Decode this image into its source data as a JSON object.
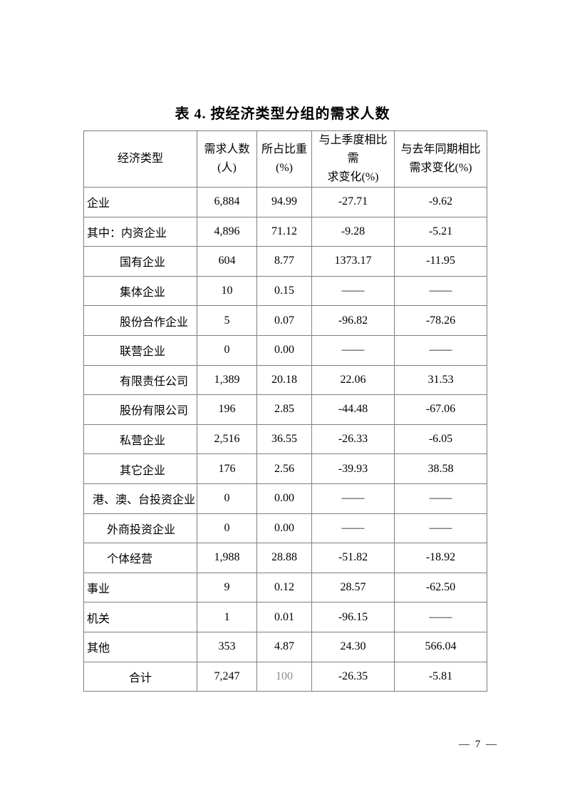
{
  "page": {
    "title": "表 4. 按经济类型分组的需求人数",
    "page_number": "— 7 —"
  },
  "colors": {
    "border": "#7f7f7f",
    "text": "#000000",
    "muted_value": "#8a8a8a"
  },
  "table": {
    "columns": [
      {
        "lines": [
          "经济类型"
        ],
        "width": 159
      },
      {
        "lines": [
          "需求人数",
          "(人)"
        ],
        "width": 84
      },
      {
        "lines": [
          "所占比重",
          "(%)"
        ],
        "width": 77
      },
      {
        "lines": [
          "与上季度相比需",
          "求变化(%)"
        ],
        "width": 116
      },
      {
        "lines": [
          "与去年同期相比",
          "需求变化(%)"
        ],
        "width": 130
      }
    ],
    "rows": [
      {
        "label": "企业",
        "indent": "none",
        "values": [
          "6,884",
          "94.99",
          "-27.71",
          "-9.62"
        ]
      },
      {
        "label": "其中：内资企业",
        "indent": "none",
        "values": [
          "4,896",
          "71.12",
          "-9.28",
          "-5.21"
        ]
      },
      {
        "label": "国有企业",
        "indent": "lg",
        "values": [
          "604",
          "8.77",
          "1373.17",
          "-11.95"
        ]
      },
      {
        "label": "集体企业",
        "indent": "lg",
        "values": [
          "10",
          "0.15",
          "——",
          "——"
        ]
      },
      {
        "label": "股份合作企业",
        "indent": "lg",
        "values": [
          "5",
          "0.07",
          "-96.82",
          "-78.26"
        ]
      },
      {
        "label": "联营企业",
        "indent": "lg",
        "values": [
          "0",
          "0.00",
          "——",
          "——"
        ]
      },
      {
        "label": "有限责任公司",
        "indent": "lg",
        "values": [
          "1,389",
          "20.18",
          "22.06",
          "31.53"
        ]
      },
      {
        "label": "股份有限公司",
        "indent": "lg",
        "values": [
          "196",
          "2.85",
          "-44.48",
          "-67.06"
        ]
      },
      {
        "label": "私营企业",
        "indent": "lg",
        "values": [
          "2,516",
          "36.55",
          "-26.33",
          "-6.05"
        ]
      },
      {
        "label": "其它企业",
        "indent": "lg",
        "values": [
          "176",
          "2.56",
          "-39.93",
          "38.58"
        ]
      },
      {
        "label": "港、澳、台投资企业",
        "indent": "sm",
        "values": [
          "0",
          "0.00",
          "——",
          "——"
        ]
      },
      {
        "label": "外商投资企业",
        "indent": "md",
        "values": [
          "0",
          "0.00",
          "——",
          "——"
        ]
      },
      {
        "label": "个体经营",
        "indent": "md",
        "values": [
          "1,988",
          "28.88",
          "-51.82",
          "-18.92"
        ]
      },
      {
        "label": "事业",
        "indent": "none",
        "values": [
          "9",
          "0.12",
          "28.57",
          "-62.50"
        ]
      },
      {
        "label": "机关",
        "indent": "none",
        "values": [
          "1",
          "0.01",
          "-96.15",
          "——"
        ]
      },
      {
        "label": "其他",
        "indent": "none",
        "values": [
          "353",
          "4.87",
          "24.30",
          "566.04"
        ]
      },
      {
        "label": "合计",
        "indent": "center",
        "values": [
          "7,247",
          "100",
          "-26.35",
          "-5.81"
        ],
        "muted_value_indexes": [
          1
        ]
      }
    ]
  }
}
